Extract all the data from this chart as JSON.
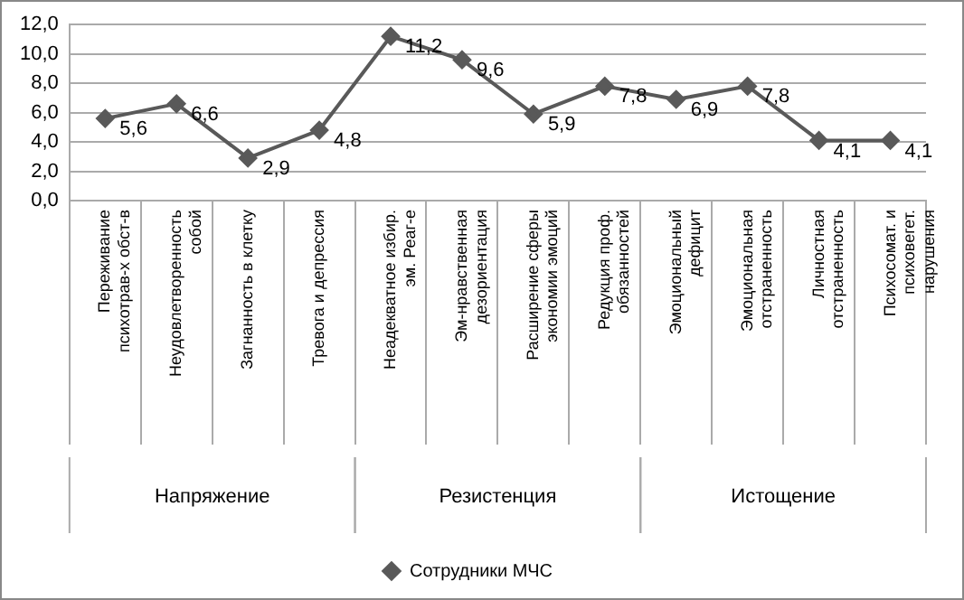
{
  "chart_data": {
    "type": "line",
    "categories": [
      "Переживание психотрав-х обст-в",
      "Неудовлетворенность собой",
      "Загнанность в клетку",
      "Тревога и депрессия",
      "Неадекватное избир. эм. Реаг-е",
      "Эм-нравственная дезориентация",
      "Расширение сферы экономии эмоций",
      "Редукция проф. обязанностей",
      "Эмоциональный дефицит",
      "Эмоциональная отстраненность",
      "Личностная отстраненность",
      "Психосомат. и психовегет. нарушения"
    ],
    "series": [
      {
        "name": "Сотрудники МЧС",
        "color": "#595959",
        "values": [
          5.6,
          6.6,
          2.9,
          4.8,
          11.2,
          9.6,
          5.9,
          7.8,
          6.9,
          7.8,
          4.1,
          4.1
        ],
        "value_labels": [
          "5,6",
          "6,6",
          "2,9",
          "4,8",
          "11,2",
          "9,6",
          "5,9",
          "7,8",
          "6,9",
          "7,8",
          "4,1",
          "4,1"
        ]
      }
    ],
    "annotations": [
      "Напряжение",
      "Резистенция",
      "Истощение"
    ],
    "ylim": [
      0,
      12
    ],
    "yticks": [
      {
        "value": 0,
        "label": "0,0"
      },
      {
        "value": 2,
        "label": "2,0"
      },
      {
        "value": 4,
        "label": "4,0"
      },
      {
        "value": 6,
        "label": "6,0"
      },
      {
        "value": 8,
        "label": "8,0"
      },
      {
        "value": 10,
        "label": "10,0"
      },
      {
        "value": 12,
        "label": "12,0"
      }
    ],
    "grid": "y",
    "legend": "bottom",
    "marker": "diamond",
    "line_style": "solid"
  }
}
